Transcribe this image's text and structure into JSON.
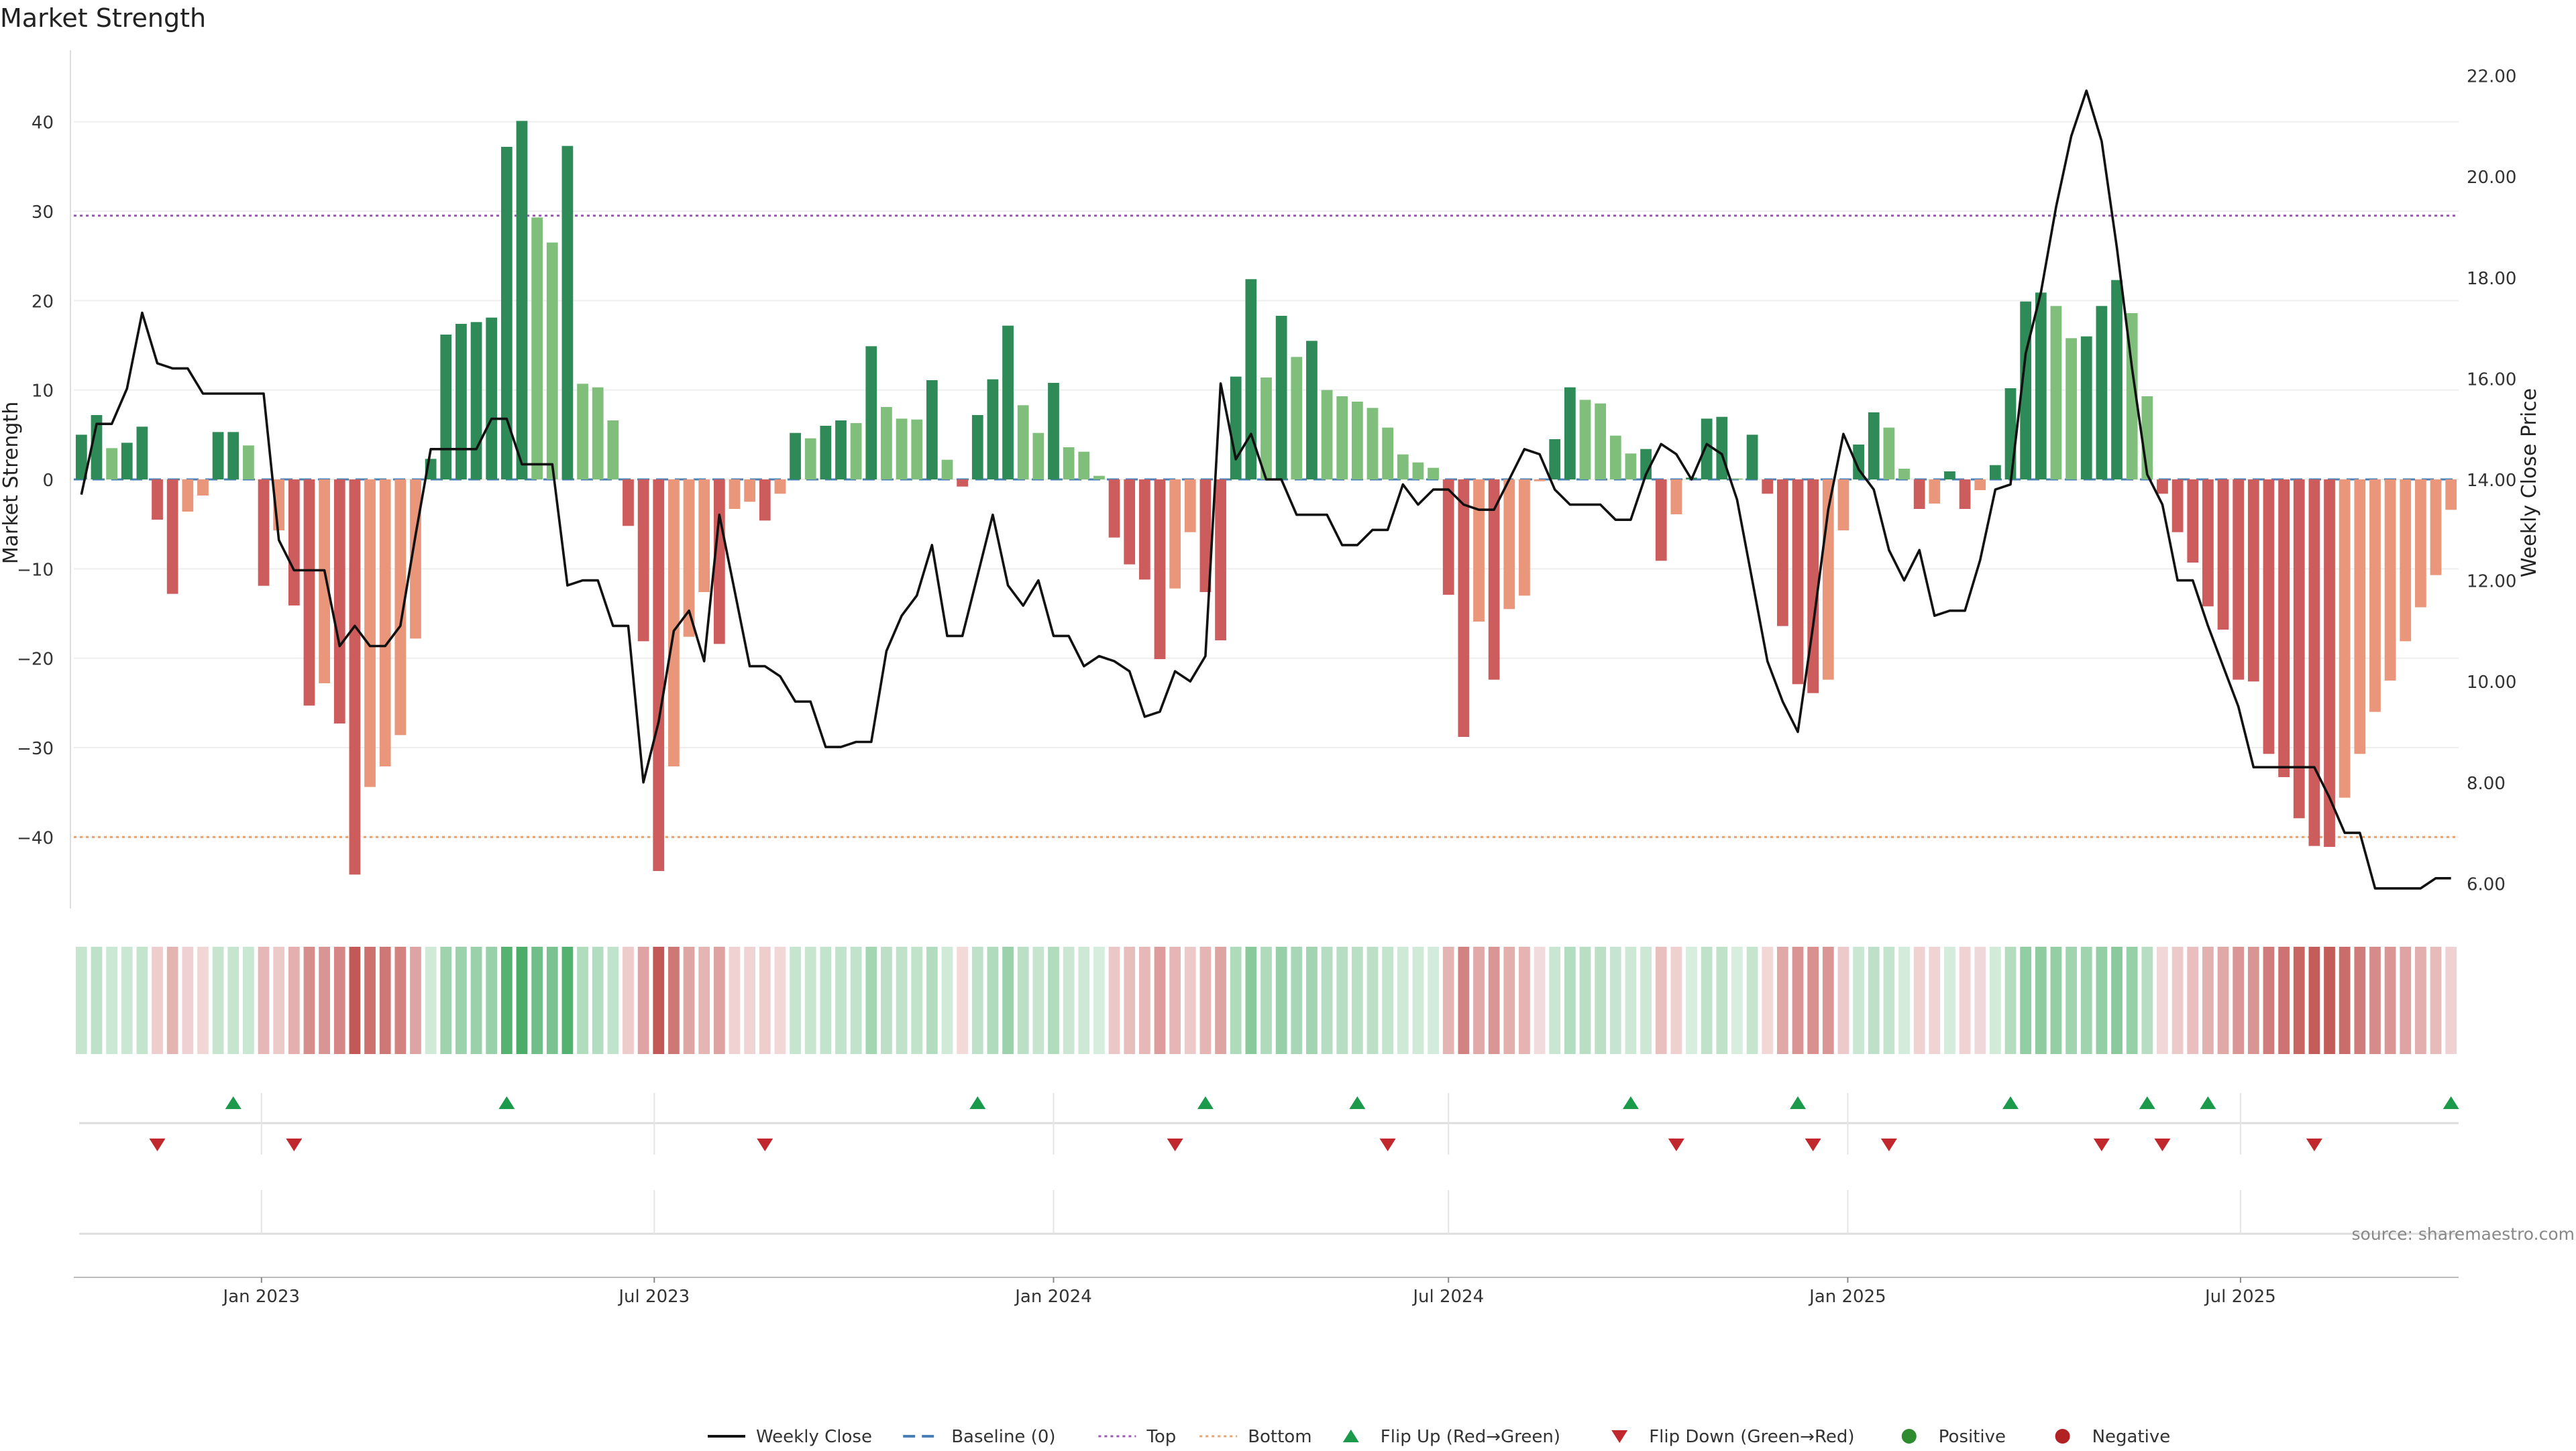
{
  "title": "Market Strength",
  "source": "source: sharemaestro.com",
  "colors": {
    "pos_strong": "#2e8b57",
    "pos_weak": "#7fbf7b",
    "neg_strong": "#cd5c5c",
    "neg_weak": "#e9967a",
    "line": "#111111",
    "baseline": "#4a7fb5",
    "top": "#9b59b6",
    "bottom": "#e8a36f",
    "flip_up": "#1a9a4a",
    "flip_down": "#c0282d"
  },
  "chart_data": {
    "type": "bar",
    "title": "Market Strength",
    "ylabel": "Market Strength",
    "y2label": "Weekly Close Price",
    "ylim": [
      -48,
      48
    ],
    "y2lim": [
      5.5,
      22.5
    ],
    "yticks": [
      40,
      30,
      20,
      10,
      0,
      -10,
      -20,
      -30,
      -40
    ],
    "ytick_labels": [
      "40",
      "30",
      "20",
      "10",
      "0",
      "−10",
      "−20",
      "−30",
      "−40"
    ],
    "y2ticks": [
      22,
      20,
      18,
      16,
      14,
      12,
      10,
      8,
      6
    ],
    "y2tick_labels": [
      "22.00",
      "20.00",
      "18.00",
      "16.00",
      "14.00",
      "12.00",
      "10.00",
      "8.00",
      "6.00"
    ],
    "reference_lines": {
      "top": 29.5,
      "bottom": -40,
      "baseline": 0
    },
    "x_start": "2022-10-10",
    "x_end": "2025-10-06",
    "xticks": [
      {
        "date": "2023-01-01",
        "label": "Jan 2023"
      },
      {
        "date": "2023-07-01",
        "label": "Jul 2023"
      },
      {
        "date": "2024-01-01",
        "label": "Jan 2024"
      },
      {
        "date": "2024-07-01",
        "label": "Jul 2024"
      },
      {
        "date": "2025-01-01",
        "label": "Jan 2025"
      },
      {
        "date": "2025-07-01",
        "label": "Jul 2025"
      }
    ],
    "series": [
      {
        "name": "Market Strength",
        "values": [
          5,
          7.2,
          3.5,
          4.1,
          5.9,
          -4.5,
          -12.8,
          -3.6,
          -1.8,
          5.3,
          5.3,
          3.8,
          -11.9,
          -5.7,
          -14.1,
          -25.3,
          -22.8,
          -27.3,
          -44.2,
          -34.4,
          -32.1,
          -28.6,
          -17.8,
          2.3,
          16.2,
          17.4,
          17.6,
          18.1,
          37.2,
          40.1,
          29.3,
          26.5,
          37.3,
          10.7,
          10.3,
          6.6,
          -5.2,
          -18.1,
          -43.8,
          -32.1,
          -17.6,
          -12.6,
          -18.4,
          -3.3,
          -2.5,
          -4.6,
          -1.6,
          5.2,
          4.6,
          6.0,
          6.6,
          6.3,
          14.9,
          8.1,
          6.8,
          6.7,
          11.1,
          2.2,
          -0.8,
          7.2,
          11.2,
          17.2,
          8.3,
          5.2,
          10.8,
          3.6,
          3.1,
          0.4,
          -6.5,
          -9.5,
          -11.2,
          -20.1,
          -12.2,
          -5.9,
          -12.6,
          -18.0,
          11.5,
          22.4,
          11.4,
          18.3,
          13.7,
          15.5,
          10.0,
          9.3,
          8.7,
          8.0,
          5.8,
          2.8,
          1.9,
          1.3,
          -12.9,
          -28.8,
          -15.9,
          -22.4,
          -14.5,
          -13.0,
          -0.2,
          4.5,
          10.3,
          8.9,
          8.5,
          4.9,
          2.9,
          3.4,
          -9.1,
          -3.9,
          0.2,
          6.8,
          7.0,
          0.1,
          5.0,
          -1.6,
          -16.4,
          -22.9,
          -23.9,
          -22.4,
          -5.7,
          3.9,
          7.5,
          5.8,
          1.2,
          -3.3,
          -2.7,
          0.9,
          -3.3,
          -1.2,
          1.6,
          10.2,
          19.9,
          20.9,
          19.4,
          15.8,
          16.0,
          19.4,
          22.3,
          18.6,
          9.3,
          -1.6,
          -5.9,
          -9.3,
          -14.2,
          -16.8,
          -22.4,
          -22.6,
          -30.7,
          -33.3,
          -37.9,
          -41.0,
          -41.1,
          -35.6,
          -30.7,
          -26.0,
          -22.5,
          -18.1,
          -14.3,
          -10.7,
          -3.4
        ]
      },
      {
        "name": "Weekly Close",
        "values": [
          13.7,
          15.1,
          15.1,
          15.8,
          17.3,
          16.3,
          16.2,
          16.2,
          15.7,
          15.7,
          15.7,
          15.7,
          15.7,
          12.8,
          12.2,
          12.2,
          12.2,
          10.7,
          11.1,
          10.7,
          10.7,
          11.1,
          12.9,
          14.6,
          14.6,
          14.6,
          14.6,
          15.2,
          15.2,
          14.3,
          14.3,
          14.3,
          11.9,
          12.0,
          12.0,
          11.1,
          11.1,
          8.0,
          9.2,
          11.0,
          11.4,
          10.4,
          13.3,
          11.8,
          10.3,
          10.3,
          10.1,
          9.6,
          9.6,
          8.7,
          8.7,
          8.8,
          8.8,
          10.6,
          11.3,
          11.7,
          12.7,
          10.9,
          10.9,
          12.1,
          13.3,
          11.9,
          11.5,
          12.0,
          10.9,
          10.9,
          10.3,
          10.5,
          10.4,
          10.2,
          9.3,
          9.4,
          10.2,
          10.0,
          10.5,
          15.9,
          14.4,
          14.9,
          14.0,
          14.0,
          13.3,
          13.3,
          13.3,
          12.7,
          12.7,
          13.0,
          13.0,
          13.9,
          13.5,
          13.8,
          13.8,
          13.5,
          13.4,
          13.4,
          14.0,
          14.6,
          14.5,
          13.8,
          13.5,
          13.5,
          13.5,
          13.2,
          13.2,
          14.1,
          14.7,
          14.5,
          14.0,
          14.7,
          14.5,
          13.6,
          12.0,
          10.4,
          9.6,
          9.0,
          11.1,
          13.4,
          14.9,
          14.2,
          13.8,
          12.6,
          12.0,
          12.6,
          11.3,
          11.4,
          11.4,
          12.4,
          13.8,
          13.9,
          16.5,
          17.7,
          19.4,
          20.8,
          21.7,
          20.7,
          18.6,
          16.2,
          14.1,
          13.5,
          12.0,
          12.0,
          11.1,
          10.3,
          9.5,
          8.3,
          8.3,
          8.3,
          8.3,
          8.3,
          7.7,
          7.0,
          7.0,
          5.9,
          5.9,
          5.9,
          5.9,
          6.1,
          6.1
        ]
      }
    ],
    "flip_up_dates": [
      "2022-12-19",
      "2023-04-24",
      "2023-11-27",
      "2024-03-11",
      "2024-05-20",
      "2024-09-23",
      "2024-12-09",
      "2025-03-17",
      "2025-05-19",
      "2025-06-16",
      "2025-10-06"
    ],
    "flip_down_dates": [
      "2022-11-14",
      "2023-01-16",
      "2023-08-21",
      "2024-02-26",
      "2024-06-03",
      "2024-10-14",
      "2024-12-16",
      "2025-01-20",
      "2025-04-28",
      "2025-05-26",
      "2025-08-04"
    ]
  },
  "legend": [
    {
      "label": "Weekly Close",
      "kind": "line"
    },
    {
      "label": "Baseline (0)",
      "kind": "dash"
    },
    {
      "label": "Top",
      "kind": "dot-purple"
    },
    {
      "label": "Bottom",
      "kind": "dot-orange"
    },
    {
      "label": "Flip Up (Red→Green)",
      "kind": "tri-up"
    },
    {
      "label": "Flip Down (Green→Red)",
      "kind": "tri-down"
    },
    {
      "label": "Positive",
      "kind": "dot-green"
    },
    {
      "label": "Negative",
      "kind": "dot-red"
    }
  ]
}
